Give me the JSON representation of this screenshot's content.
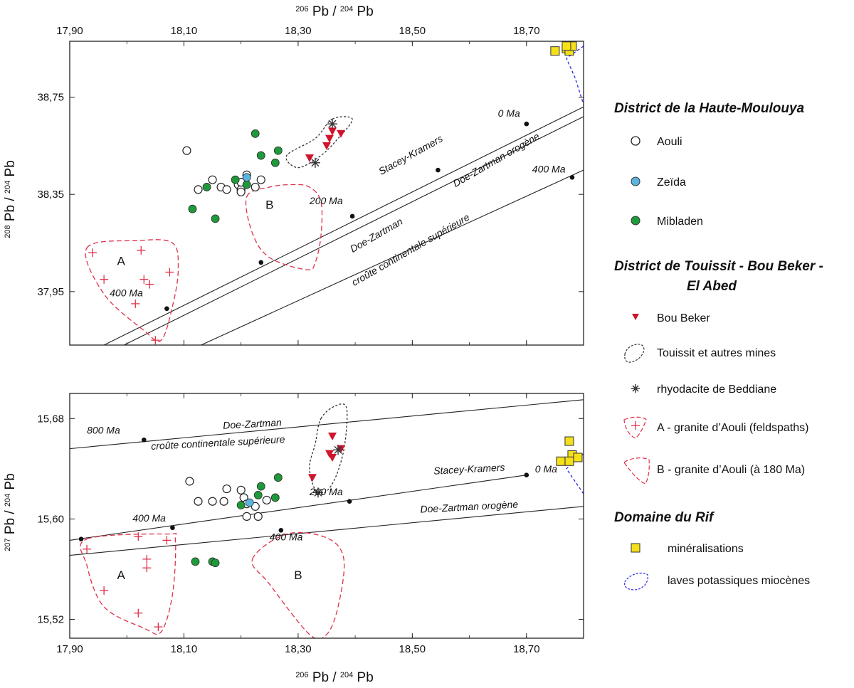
{
  "colors": {
    "bou_beker": "#d0142c",
    "zeida": "#5ab4e0",
    "mibladen": "#1f9a3b",
    "granite": "#e0304a",
    "mineral_fill": "#f5e01a",
    "laves": "#2a2ae8",
    "axis": "#222222"
  },
  "chart_data": [
    {
      "type": "scatter",
      "id": "top",
      "top_axis_title": {
        "pre": "206",
        "a": "Pb / ",
        "sup": "204",
        "b": "Pb"
      },
      "ylabel": {
        "sup1": "208",
        "a": "Pb / ",
        "sup2": "204",
        "b": "Pb"
      },
      "xlim": [
        17.9,
        18.8
      ],
      "ylim": [
        37.73,
        38.98
      ],
      "xticks": [
        {
          "v": 17.9,
          "label": "17,90"
        },
        {
          "v": 18.1,
          "label": "18,10"
        },
        {
          "v": 18.3,
          "label": "18,30"
        },
        {
          "v": 18.5,
          "label": "18,50"
        },
        {
          "v": 18.7,
          "label": "18,70"
        }
      ],
      "yticks": [
        {
          "v": 37.95,
          "label": "37,95"
        },
        {
          "v": 38.35,
          "label": "38,35"
        },
        {
          "v": 38.75,
          "label": "38,75"
        }
      ],
      "lines": [
        {
          "name": "stacey-kramers",
          "pts": [
            [
              17.96,
              37.73
            ],
            [
              18.8,
              38.71
            ]
          ]
        },
        {
          "name": "doe-zartman-orogene",
          "pts": [
            [
              17.995,
              37.73
            ],
            [
              18.8,
              38.67
            ]
          ]
        },
        {
          "name": "doe-zartman-crust",
          "pts": [
            [
              18.13,
              37.73
            ],
            [
              18.8,
              38.45
            ]
          ]
        }
      ],
      "age_points": [
        {
          "v": [
            18.07,
            37.88
          ],
          "label": "400 Ma",
          "lx": 17.97,
          "ly": 37.93
        },
        {
          "v": [
            18.235,
            38.07
          ],
          "label": ""
        },
        {
          "v": [
            18.395,
            38.26
          ],
          "label": "200 Ma",
          "lx": 18.32,
          "ly": 38.31
        },
        {
          "v": [
            18.545,
            38.45
          ],
          "label": ""
        },
        {
          "v": [
            18.7,
            38.64
          ],
          "label": "0 Ma",
          "lx": 18.65,
          "ly": 38.67
        },
        {
          "v": [
            18.78,
            38.42
          ],
          "label": "400 Ma",
          "lx": 18.71,
          "ly": 38.44
        }
      ],
      "curve_labels": [
        {
          "text": "Stacey-Kramers",
          "at": [
            18.5,
            38.5
          ],
          "angle": -29
        },
        {
          "text": "Doe-Zartman  orogène",
          "at": [
            18.65,
            38.48
          ],
          "angle": -30
        },
        {
          "text": "Doe-Zartman",
          "at": [
            18.44,
            38.17
          ],
          "angle": -30
        },
        {
          "text": "croûte continentale supérieure",
          "at": [
            18.5,
            38.11
          ],
          "angle": -30
        }
      ],
      "field_letters": [
        {
          "text": "A",
          "at": [
            17.99,
            38.06
          ]
        },
        {
          "text": "B",
          "at": [
            18.25,
            38.29
          ]
        }
      ],
      "field_granite_a": [
        [
          17.93,
          38.13
        ],
        [
          18.02,
          38.16
        ],
        [
          18.08,
          38.15
        ],
        [
          18.09,
          38.04
        ],
        [
          18.08,
          37.89
        ],
        [
          18.06,
          37.75
        ],
        [
          18.03,
          37.79
        ],
        [
          17.96,
          37.94
        ]
      ],
      "field_granite_b": [
        [
          18.21,
          38.34
        ],
        [
          18.25,
          38.38
        ],
        [
          18.29,
          38.39
        ],
        [
          18.32,
          38.38
        ],
        [
          18.34,
          38.32
        ],
        [
          18.34,
          38.18
        ],
        [
          18.33,
          38.07
        ],
        [
          18.315,
          38.04
        ],
        [
          18.25,
          38.09
        ],
        [
          18.22,
          38.19
        ]
      ],
      "field_touissit": [
        [
          18.36,
          38.66
        ],
        [
          18.395,
          38.66
        ],
        [
          18.37,
          38.58
        ],
        [
          18.34,
          38.51
        ],
        [
          18.3,
          38.46
        ],
        [
          18.28,
          38.51
        ],
        [
          18.33,
          38.58
        ]
      ],
      "field_laves": [
        [
          18.8,
          38.96
        ],
        [
          18.77,
          38.91
        ],
        [
          18.785,
          38.83
        ],
        [
          18.8,
          38.72
        ]
      ],
      "aouli": [
        [
          18.105,
          38.53
        ],
        [
          18.125,
          38.37
        ],
        [
          18.15,
          38.41
        ],
        [
          18.165,
          38.38
        ],
        [
          18.175,
          38.37
        ],
        [
          18.195,
          38.39
        ],
        [
          18.2,
          38.37
        ],
        [
          18.21,
          38.43
        ],
        [
          18.2,
          38.4
        ],
        [
          18.235,
          38.41
        ],
        [
          18.225,
          38.38
        ],
        [
          18.2,
          38.36
        ]
      ],
      "zeida": [
        [
          18.21,
          38.42
        ]
      ],
      "mibladen": [
        [
          18.225,
          38.6
        ],
        [
          18.235,
          38.51
        ],
        [
          18.26,
          38.48
        ],
        [
          18.265,
          38.53
        ],
        [
          18.19,
          38.41
        ],
        [
          18.14,
          38.38
        ],
        [
          18.115,
          38.29
        ],
        [
          18.155,
          38.25
        ],
        [
          18.21,
          38.39
        ]
      ],
      "bou_beker": [
        [
          18.36,
          38.61
        ],
        [
          18.375,
          38.6
        ],
        [
          18.355,
          38.58
        ],
        [
          18.35,
          38.55
        ],
        [
          18.32,
          38.5
        ]
      ],
      "beddiane": [
        [
          18.36,
          38.64
        ],
        [
          18.33,
          38.48
        ]
      ],
      "granite_a_pts": [
        [
          17.94,
          38.11
        ],
        [
          18.025,
          38.12
        ],
        [
          17.96,
          38.0
        ],
        [
          18.03,
          38.0
        ],
        [
          18.04,
          37.98
        ],
        [
          18.075,
          38.03
        ],
        [
          18.015,
          37.9
        ],
        [
          18.05,
          37.75
        ]
      ],
      "mineral": [
        [
          18.75,
          38.94
        ],
        [
          18.77,
          38.95
        ],
        [
          18.775,
          38.94
        ],
        [
          18.78,
          38.96
        ],
        [
          18.77,
          38.96
        ]
      ]
    },
    {
      "type": "scatter",
      "id": "bottom",
      "xlabel": {
        "pre": "206",
        "a": "Pb / ",
        "sup": "204",
        "b": "Pb"
      },
      "ylabel": {
        "sup1": "207",
        "a": "Pb / ",
        "sup2": "204",
        "b": "Pb"
      },
      "xlim": [
        17.9,
        18.8
      ],
      "ylim": [
        15.505,
        15.7
      ],
      "xticks": [
        {
          "v": 17.9,
          "label": "17,90"
        },
        {
          "v": 18.1,
          "label": "18,10"
        },
        {
          "v": 18.3,
          "label": "18,30"
        },
        {
          "v": 18.5,
          "label": "18,50"
        },
        {
          "v": 18.7,
          "label": "18,70"
        }
      ],
      "yticks": [
        {
          "v": 15.52,
          "label": "15,52"
        },
        {
          "v": 15.6,
          "label": "15,60"
        },
        {
          "v": 15.68,
          "label": "15,68"
        }
      ],
      "lines": [
        {
          "name": "doe-zartman-crust",
          "pts": [
            [
              17.9,
              15.656
            ],
            [
              18.8,
              15.695
            ]
          ]
        },
        {
          "name": "stacey-kramers",
          "pts": [
            [
              17.9,
              15.583
            ],
            [
              18.7,
              15.635
            ]
          ]
        },
        {
          "name": "doe-zartman-orogene",
          "pts": [
            [
              17.9,
              15.571
            ],
            [
              18.8,
              15.61
            ]
          ]
        }
      ],
      "age_points": [
        {
          "v": [
            18.03,
            15.663
          ],
          "label": "800 Ma",
          "lx": 17.93,
          "ly": 15.668
        },
        {
          "v": [
            17.92,
            15.584
          ],
          "label": ""
        },
        {
          "v": [
            18.08,
            15.593
          ],
          "label": "400 Ma",
          "lx": 18.01,
          "ly": 15.598
        },
        {
          "v": [
            18.39,
            15.614
          ],
          "label": "200 Ma",
          "lx": 18.32,
          "ly": 15.619
        },
        {
          "v": [
            18.7,
            15.635
          ],
          "label": "0 Ma",
          "lx": 18.715,
          "ly": 15.637
        },
        {
          "v": [
            18.27,
            15.591
          ],
          "label": "400 Ma",
          "lx": 18.25,
          "ly": 15.583
        }
      ],
      "curve_labels": [
        {
          "text": "Doe-Zartman",
          "at": [
            18.22,
            15.673
          ],
          "angle": -3
        },
        {
          "text": "croûte continentale supérieure",
          "at": [
            18.16,
            15.658
          ],
          "angle": -3
        },
        {
          "text": "Stacey-Kramers",
          "at": [
            18.6,
            15.637
          ],
          "angle": -3
        },
        {
          "text": "Doe-Zartman  orogène",
          "at": [
            18.6,
            15.607
          ],
          "angle": -3
        }
      ],
      "field_letters": [
        {
          "text": "A",
          "at": [
            17.99,
            15.552
          ]
        },
        {
          "text": "B",
          "at": [
            18.3,
            15.552
          ]
        }
      ],
      "field_granite_a": [
        [
          17.93,
          15.584
        ],
        [
          18.07,
          15.588
        ],
        [
          18.085,
          15.583
        ],
        [
          18.08,
          15.54
        ],
        [
          18.06,
          15.51
        ],
        [
          18.03,
          15.513
        ],
        [
          17.96,
          15.53
        ],
        [
          17.93,
          15.563
        ]
      ],
      "field_granite_b": [
        [
          18.22,
          15.568
        ],
        [
          18.28,
          15.588
        ],
        [
          18.35,
          15.585
        ],
        [
          18.38,
          15.568
        ],
        [
          18.37,
          15.53
        ],
        [
          18.35,
          15.508
        ],
        [
          18.32,
          15.508
        ],
        [
          18.25,
          15.548
        ]
      ],
      "field_touissit": [
        [
          18.34,
          15.68
        ],
        [
          18.365,
          15.69
        ],
        [
          18.385,
          15.688
        ],
        [
          18.38,
          15.655
        ],
        [
          18.36,
          15.628
        ],
        [
          18.335,
          15.62
        ],
        [
          18.32,
          15.64
        ],
        [
          18.33,
          15.66
        ]
      ],
      "field_laves": [
        [
          18.8,
          15.62
        ],
        [
          18.77,
          15.64
        ],
        [
          18.8,
          15.652
        ]
      ],
      "aouli": [
        [
          18.11,
          15.63
        ],
        [
          18.175,
          15.624
        ],
        [
          18.2,
          15.623
        ],
        [
          18.205,
          15.617
        ],
        [
          18.125,
          15.614
        ],
        [
          18.15,
          15.614
        ],
        [
          18.17,
          15.614
        ],
        [
          18.21,
          15.612
        ],
        [
          18.21,
          15.602
        ],
        [
          18.23,
          15.602
        ],
        [
          18.245,
          15.615
        ],
        [
          18.225,
          15.61
        ]
      ],
      "zeida": [
        [
          18.215,
          15.613
        ]
      ],
      "mibladen": [
        [
          18.235,
          15.626
        ],
        [
          18.265,
          15.633
        ],
        [
          18.2,
          15.611
        ],
        [
          18.23,
          15.619
        ],
        [
          18.26,
          15.617
        ],
        [
          18.12,
          15.566
        ],
        [
          18.15,
          15.566
        ],
        [
          18.155,
          15.565
        ]
      ],
      "bou_beker": [
        [
          18.36,
          15.666
        ],
        [
          18.375,
          15.656
        ],
        [
          18.355,
          15.652
        ],
        [
          18.36,
          15.649
        ],
        [
          18.325,
          15.633
        ]
      ],
      "beddiane": [
        [
          18.37,
          15.655
        ],
        [
          18.335,
          15.621
        ]
      ],
      "granite_a_pts": [
        [
          17.93,
          15.576
        ],
        [
          18.02,
          15.586
        ],
        [
          18.07,
          15.583
        ],
        [
          18.035,
          15.568
        ],
        [
          18.035,
          15.561
        ],
        [
          17.96,
          15.543
        ],
        [
          18.02,
          15.525
        ],
        [
          18.055,
          15.514
        ]
      ],
      "mineral": [
        [
          18.775,
          15.662
        ],
        [
          18.78,
          15.651
        ],
        [
          18.775,
          15.646
        ],
        [
          18.79,
          15.649
        ],
        [
          18.76,
          15.646
        ]
      ]
    }
  ],
  "legend": {
    "district1": "District de la Haute-Moulouya",
    "aouli": "Aouli",
    "zeida": "Zeïda",
    "mibladen": "Mibladen",
    "district2_line1": "District de Touissit - Bou Beker -",
    "district2_line2": "El Abed",
    "bou_beker": "Bou Beker",
    "touissit": "Touissit et autres mines",
    "beddiane": "rhyodacite de Beddiane",
    "granite_a": "A - granite d’Aouli (feldspaths)",
    "granite_b": "B - granite d’Aouli (à 180 Ma)",
    "domain_rif": "Domaine du Rif",
    "mineral": "minéralisations",
    "laves": "laves potassiques miocènes"
  }
}
